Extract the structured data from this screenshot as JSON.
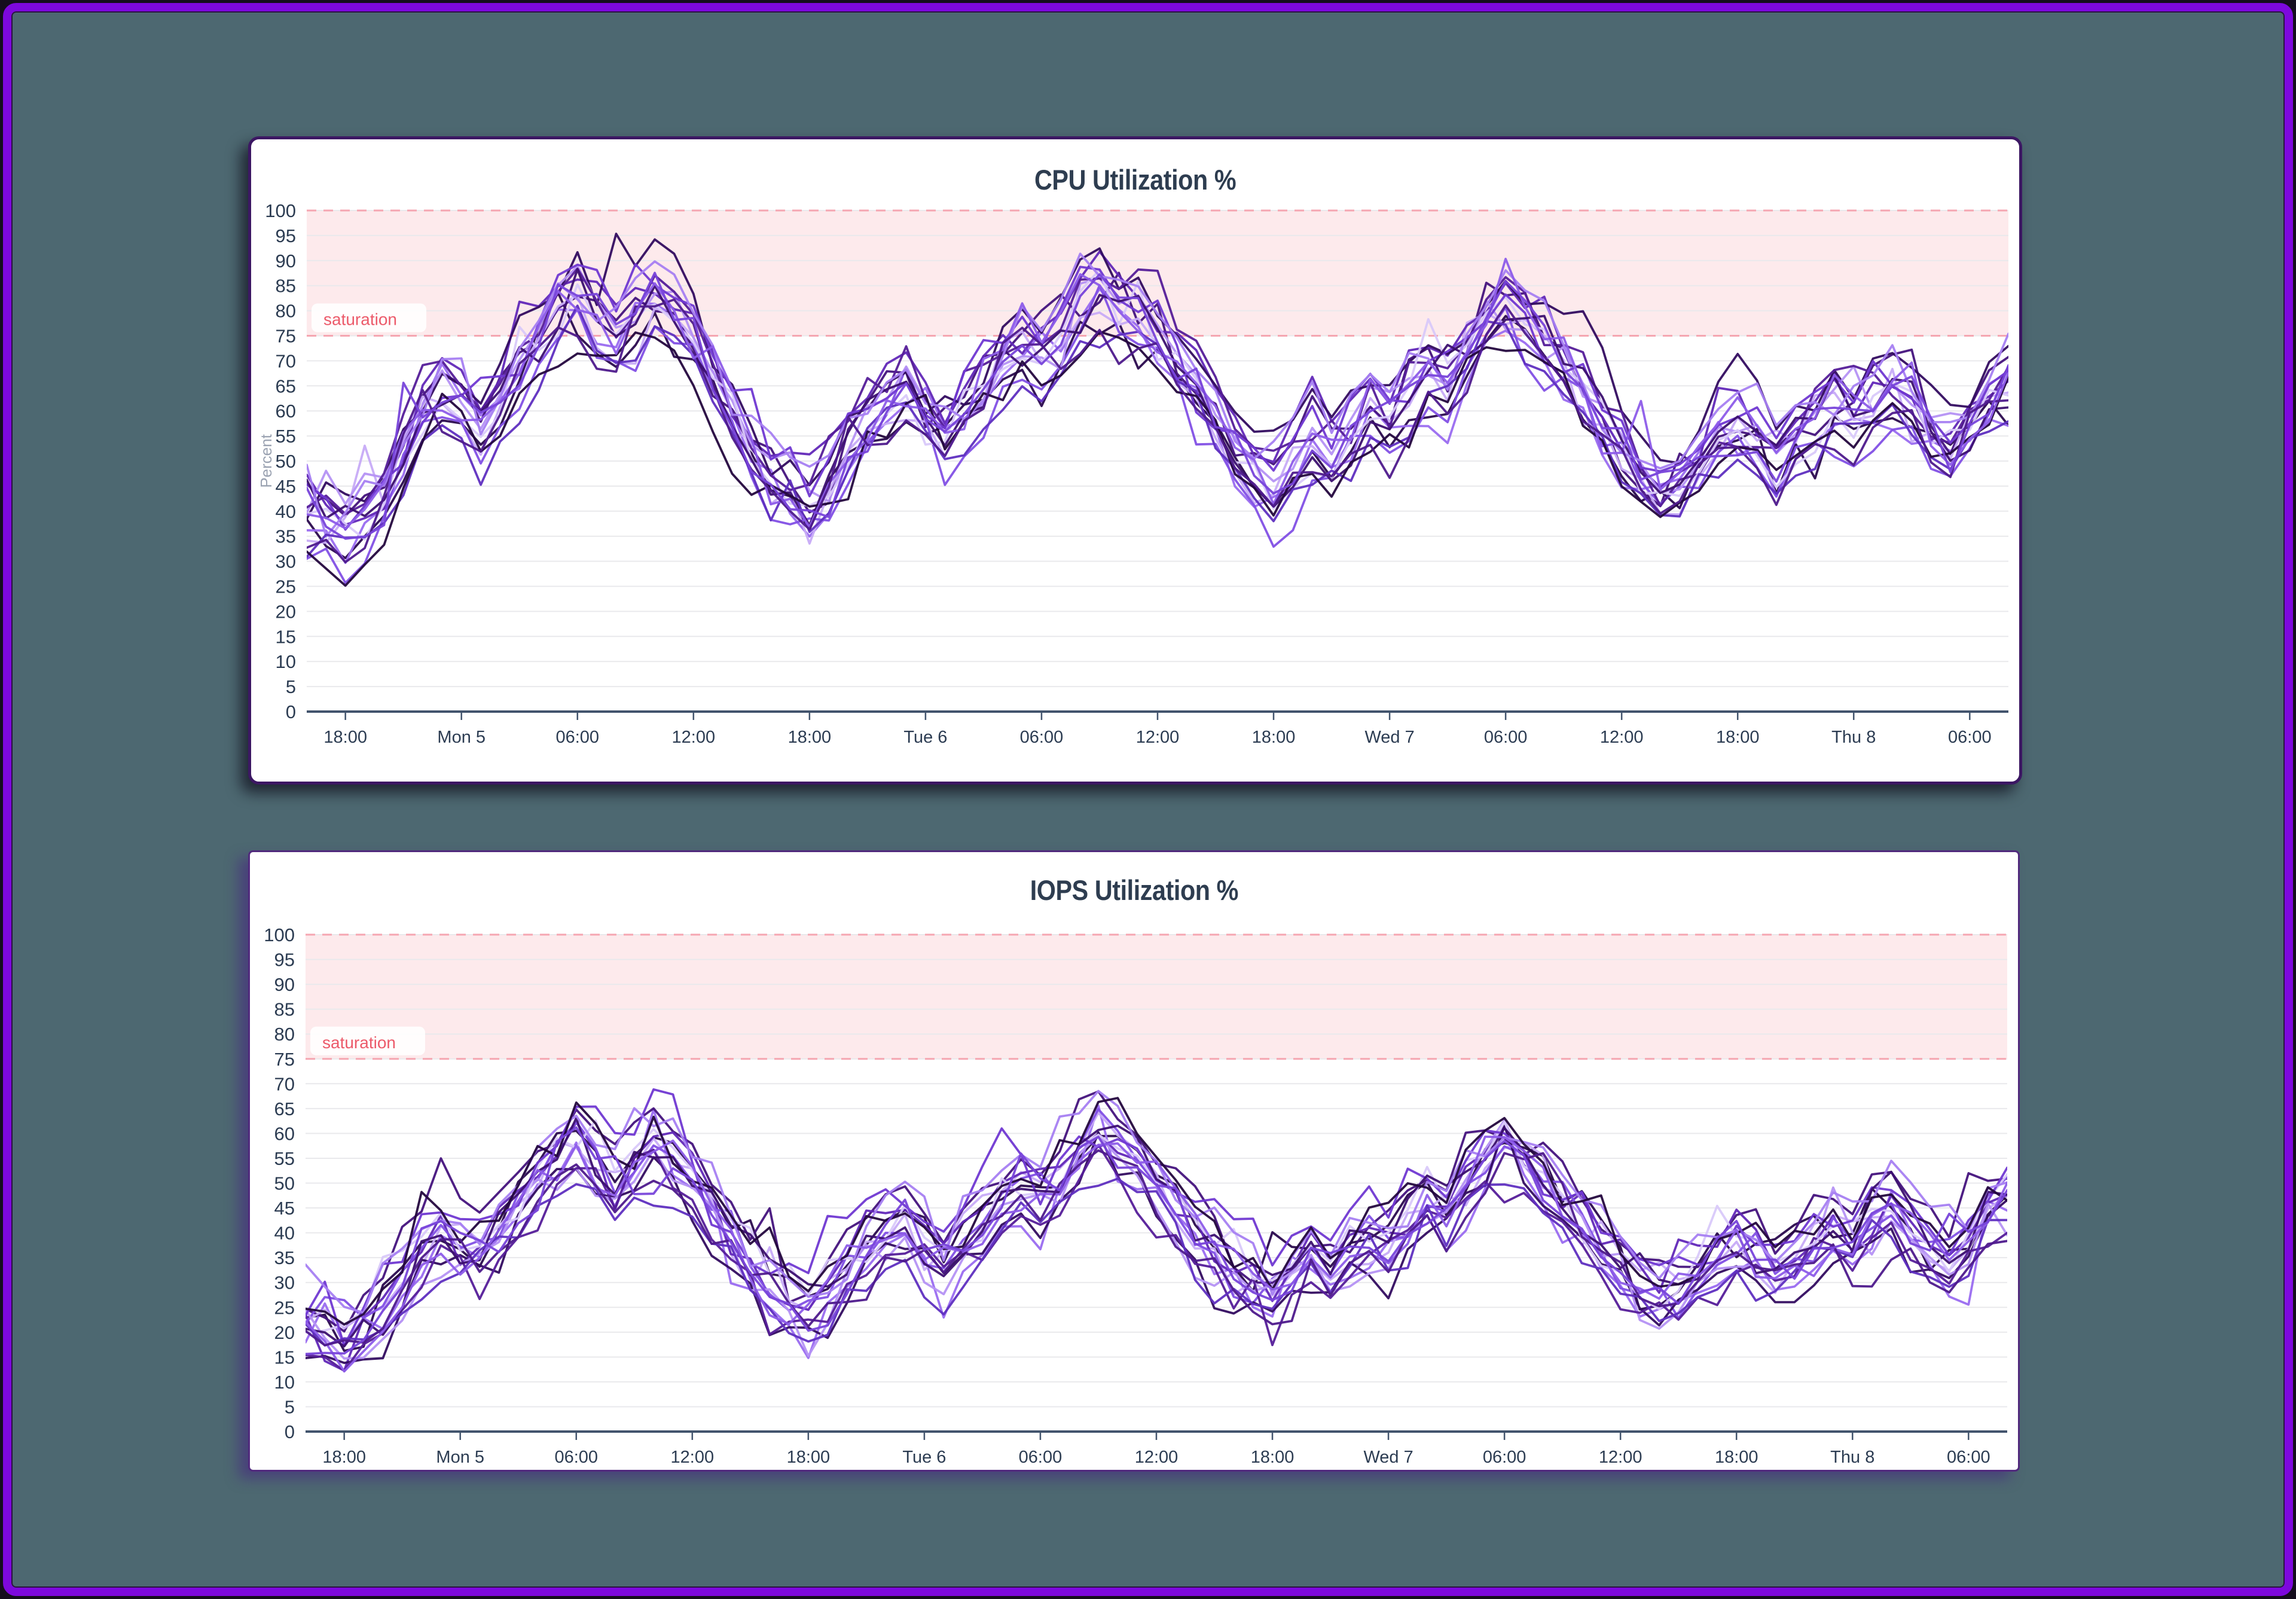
{
  "chart_data": [
    {
      "type": "line",
      "title": "CPU Utilization %",
      "ylabel": "Percent",
      "ylim": [
        0,
        100
      ],
      "y_tick_step": 5,
      "grid": true,
      "legend": "none",
      "x_tick_labels": [
        "18:00",
        "Mon 5",
        "06:00",
        "12:00",
        "18:00",
        "Tue 6",
        "06:00",
        "12:00",
        "18:00",
        "Wed 7",
        "06:00",
        "12:00",
        "18:00",
        "Thu 8",
        "06:00"
      ],
      "x_sample_interval_hours": 1,
      "samples_per_tick_interval": 6,
      "first_tick_sample_index": 2,
      "threshold_band": {
        "label": "saturation",
        "from": 75,
        "to": 100
      },
      "series_count": 18,
      "ensemble_mean": [
        39,
        38,
        36,
        39,
        44,
        52,
        60,
        64,
        61,
        57,
        62,
        68,
        74,
        80,
        83,
        78,
        74,
        79,
        83,
        80,
        74,
        66,
        58,
        52,
        47,
        43,
        40,
        45,
        52,
        57,
        61,
        64,
        60,
        55,
        59,
        65,
        70,
        74,
        71,
        76,
        82,
        85,
        82,
        79,
        75,
        70,
        64,
        58,
        52,
        48,
        45,
        50,
        55,
        52,
        57,
        61,
        58,
        63,
        69,
        66,
        72,
        78,
        81,
        77,
        73,
        68,
        63,
        57,
        52,
        46,
        43,
        46,
        50,
        54,
        57,
        54,
        50,
        54,
        58,
        61,
        58,
        62,
        65,
        61,
        56,
        53,
        58,
        63,
        67
      ],
      "series_seeds": [
        11,
        23,
        37,
        41,
        53,
        67,
        79,
        83,
        97,
        101,
        113,
        127,
        139,
        151,
        163,
        173,
        181,
        193
      ],
      "spread": {
        "offset": 6.5,
        "ar_sigma": 3.0,
        "ar_rho": 0.35,
        "spike_p": 0.02,
        "spike_max": 10,
        "clamp": [
          3,
          99
        ]
      }
    },
    {
      "type": "line",
      "title": "IOPS Utilization %",
      "ylabel": "",
      "ylim": [
        0,
        100
      ],
      "y_tick_step": 5,
      "grid": true,
      "legend": "none",
      "x_tick_labels": [
        "18:00",
        "Mon 5",
        "06:00",
        "12:00",
        "18:00",
        "Tue 6",
        "06:00",
        "12:00",
        "18:00",
        "Wed 7",
        "06:00",
        "12:00",
        "18:00",
        "Thu 8",
        "06:00"
      ],
      "x_sample_interval_hours": 1,
      "samples_per_tick_interval": 6,
      "first_tick_sample_index": 2,
      "threshold_band": {
        "label": "saturation",
        "from": 75,
        "to": 100
      },
      "series_count": 18,
      "ensemble_mean": [
        21,
        20,
        18,
        21,
        25,
        31,
        37,
        41,
        39,
        36,
        40,
        45,
        50,
        55,
        58,
        54,
        50,
        55,
        58,
        55,
        50,
        44,
        38,
        34,
        30,
        27,
        25,
        28,
        33,
        37,
        40,
        42,
        39,
        35,
        38,
        43,
        47,
        50,
        48,
        52,
        57,
        60,
        57,
        54,
        50,
        46,
        41,
        37,
        33,
        30,
        28,
        32,
        36,
        33,
        37,
        40,
        38,
        42,
        47,
        44,
        50,
        55,
        58,
        54,
        50,
        46,
        42,
        37,
        33,
        29,
        27,
        29,
        32,
        35,
        38,
        35,
        32,
        35,
        38,
        41,
        39,
        42,
        45,
        41,
        37,
        34,
        38,
        43,
        47
      ],
      "series_seeds": [
        11,
        23,
        37,
        41,
        53,
        67,
        79,
        83,
        97,
        101,
        113,
        127,
        139,
        151,
        163,
        173,
        181,
        193
      ],
      "spread": {
        "offset": 6.0,
        "ar_sigma": 2.8,
        "ar_rho": 0.35,
        "spike_p": 0.022,
        "spike_max": 12,
        "clamp": [
          6,
          82
        ]
      }
    }
  ],
  "style": {
    "page_background": "#4d6871",
    "frame_border": "#7d08dd",
    "frame_outer": "#150d1d",
    "card_background": "#ffffff",
    "title_color": "#2e3d50",
    "axis_color": "#42546d",
    "tick_label_color": "#2c3c52",
    "grid_color": "#e9e9ec",
    "band_fill": "#fdeaec",
    "band_line": "#f5a6b1",
    "band_label_color": "#ec5a6a",
    "band_label_bg": "#ffffff",
    "ylabel_color": "#9aa2b1",
    "line_palette": [
      "#2a0a4e",
      "#9a6cf0",
      "#45137d",
      "#c7abf7",
      "#6228b8",
      "#8250e5",
      "#330c60",
      "#b592f4",
      "#551d99",
      "#d9c9fa",
      "#7038d2",
      "#3c1070",
      "#a77ff2",
      "#5f2fc0",
      "#24073e",
      "#8d5ce9",
      "#4e1a8c",
      "#7845da"
    ]
  }
}
